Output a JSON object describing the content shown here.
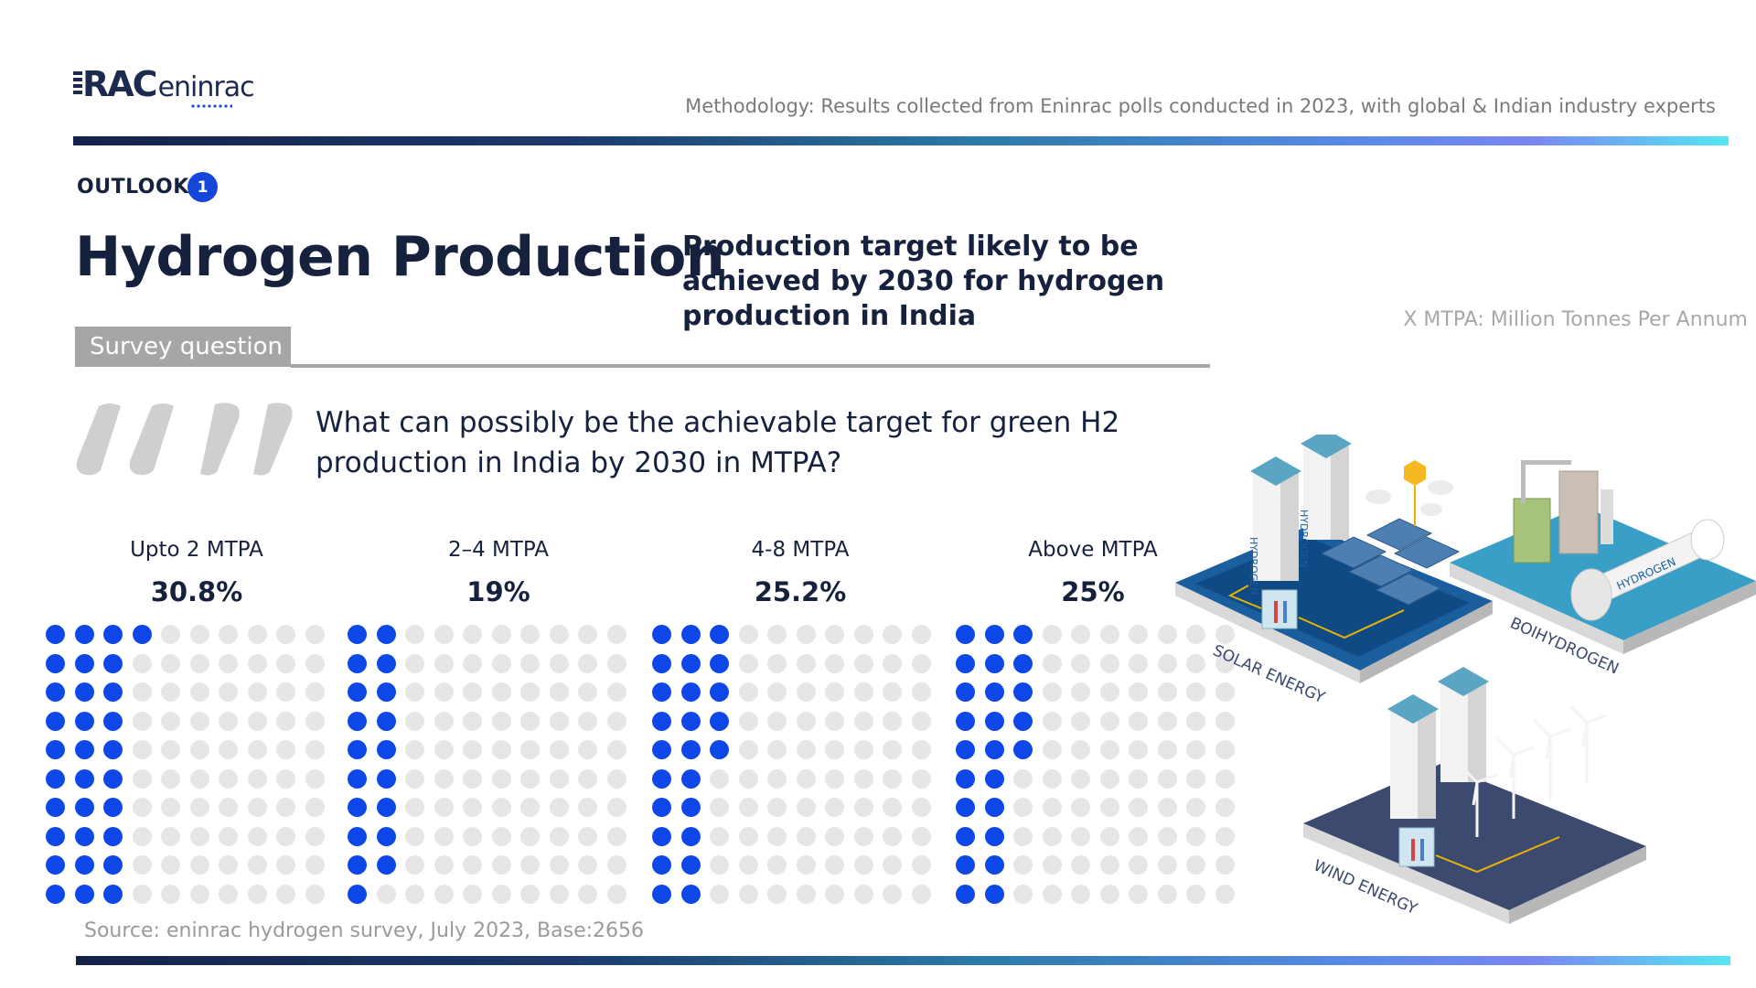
{
  "brand": {
    "logo_text": "RAC",
    "logo_small": "eninrac"
  },
  "methodology": "Methodology: Results collected from Eninrac polls conducted in 2023, with global & Indian industry experts",
  "outlook": {
    "label": "OUTLOOK",
    "number": "1"
  },
  "title": "Hydrogen Production",
  "subtitle": "Production target likely to be achieved by 2030 for hydrogen production in India",
  "unit_note": "X MTPA: Million Tonnes Per Annum",
  "survey": {
    "tag": "Survey question",
    "question": "What can possibly be the achievable target for green H2 production in India by 2030 in MTPA?"
  },
  "source": "Source: eninrac hydrogen survey, July 2023, Base:2656",
  "colors": {
    "filled": "#0d47e8",
    "empty": "#e6e6e6",
    "navy": "#16213e",
    "quote": "#cfcfcf"
  },
  "chart_data": {
    "type": "waffle",
    "grid": {
      "rows": 10,
      "cols": 10
    },
    "fill_order": "column-wise from left",
    "categories": [
      "Upto 2 MTPA",
      "2–4 MTPA",
      "4-8 MTPA",
      "Above MTPA"
    ],
    "values": [
      30.8,
      19,
      25.2,
      25
    ],
    "value_labels": [
      "30.8%",
      "19%",
      "25.2%",
      "25%"
    ],
    "unit": "%"
  },
  "illustration": {
    "labels": [
      "SOLAR ENERGY",
      "BOIHYDROGEN",
      "WIND ENERGY",
      "HYDROGEN"
    ]
  }
}
